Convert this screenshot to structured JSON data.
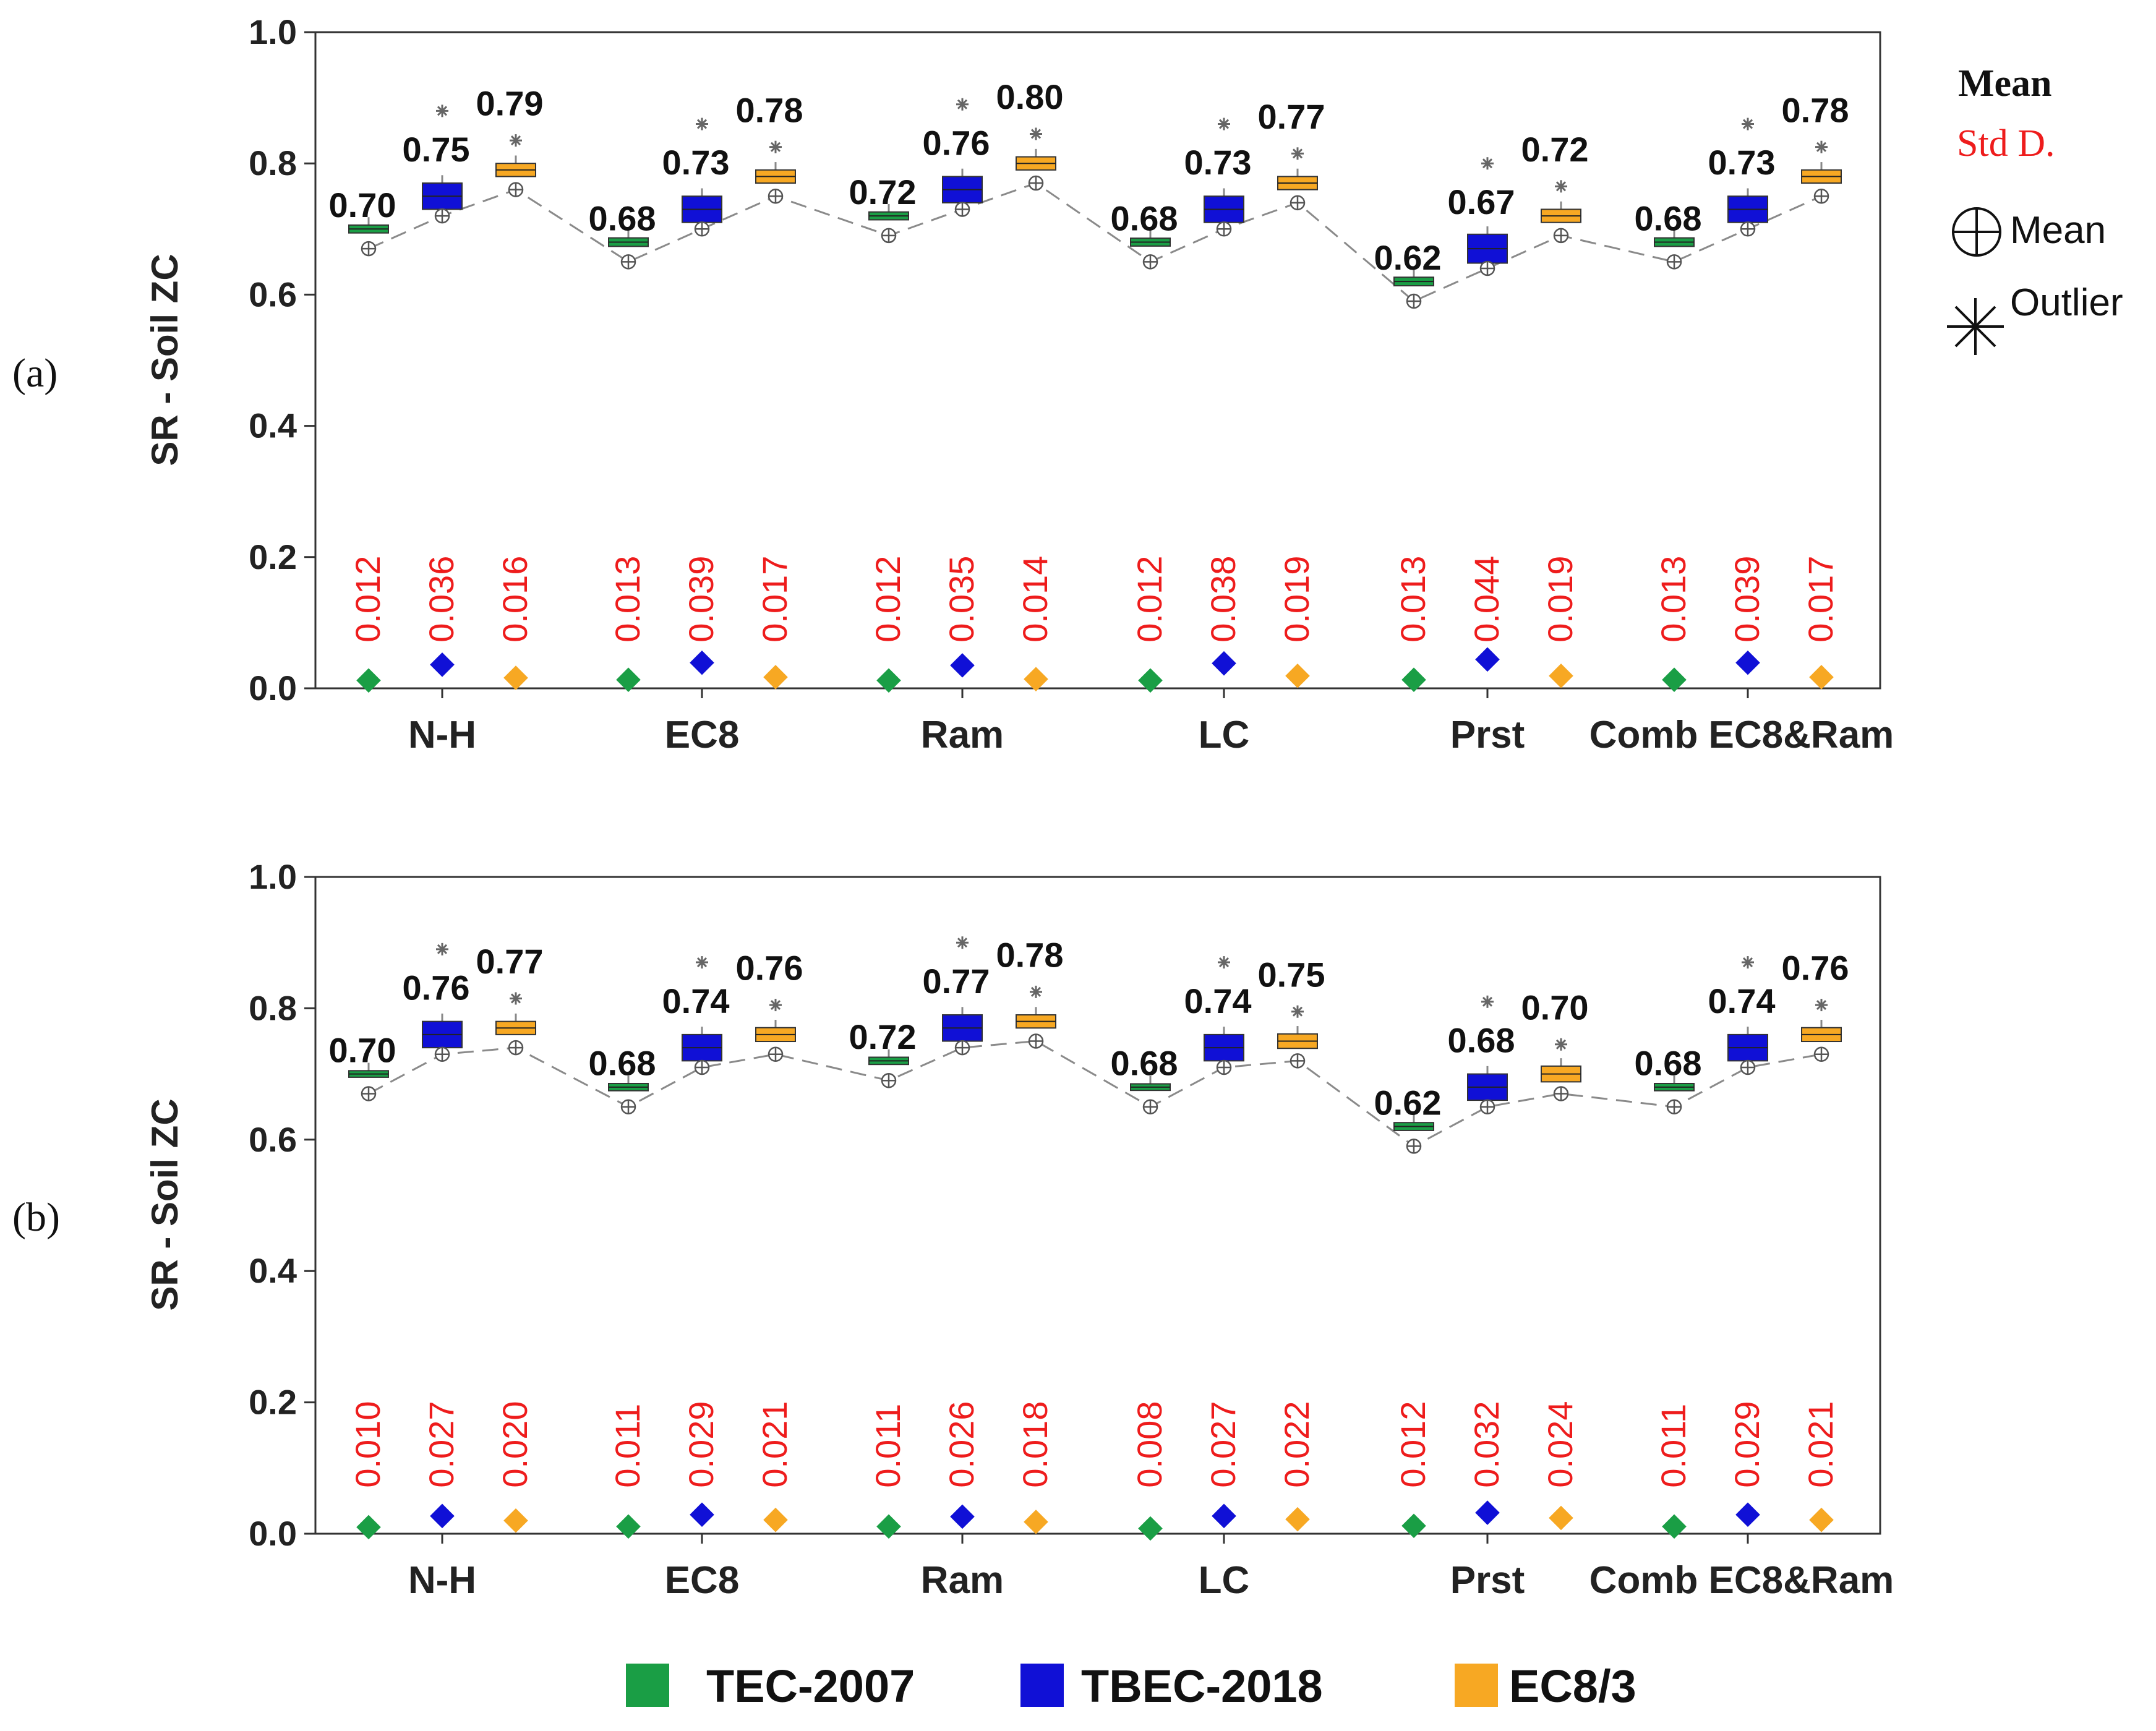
{
  "series_colors": {
    "TEC-2007": "#1a9e45",
    "TBEC-2018": "#1010d6",
    "EC8/3": "#f7a823"
  },
  "side_legend": {
    "mean_title": "Mean",
    "std_title": "Std D.",
    "mean_symbol": "Mean",
    "outlier_symbol": "Outlier"
  },
  "legend": [
    {
      "label": "TEC-2007",
      "color": "#1a9e45"
    },
    {
      "label": "TBEC-2018",
      "color": "#1010d6"
    },
    {
      "label": "EC8/3",
      "color": "#f7a823"
    }
  ],
  "chart_data": [
    {
      "type": "box",
      "panel": "(a)",
      "ylabel": "SR - Soil ZC",
      "ylim": [
        0.0,
        1.0
      ],
      "yticks": [
        "0.0",
        "0.2",
        "0.4",
        "0.6",
        "0.8",
        "1.0"
      ],
      "categories": [
        "N-H",
        "EC8",
        "Ram",
        "LC",
        "Prst",
        "Comb EC8&Ram"
      ],
      "series": [
        {
          "name": "TEC-2007",
          "mean": [
            0.7,
            0.68,
            0.72,
            0.68,
            0.62,
            0.68
          ],
          "mean_labels": [
            "0.70",
            "0.68",
            "0.72",
            "0.68",
            "0.62",
            "0.68"
          ],
          "std": [
            0.012,
            0.013,
            0.012,
            0.012,
            0.013,
            0.013
          ],
          "std_labels": [
            "0.012",
            "0.013",
            "0.012",
            "0.012",
            "0.013",
            "0.013"
          ]
        },
        {
          "name": "TBEC-2018",
          "mean": [
            0.75,
            0.73,
            0.76,
            0.73,
            0.67,
            0.73
          ],
          "mean_labels": [
            "0.75",
            "0.73",
            "0.76",
            "0.73",
            "0.67",
            "0.73"
          ],
          "std": [
            0.036,
            0.039,
            0.035,
            0.038,
            0.044,
            0.039
          ],
          "std_labels": [
            "0.036",
            "0.039",
            "0.035",
            "0.038",
            "0.044",
            "0.039"
          ]
        },
        {
          "name": "EC8/3",
          "mean": [
            0.79,
            0.78,
            0.8,
            0.77,
            0.72,
            0.78
          ],
          "mean_labels": [
            "0.79",
            "0.78",
            "0.80",
            "0.77",
            "0.72",
            "0.78"
          ],
          "std": [
            0.016,
            0.017,
            0.014,
            0.019,
            0.019,
            0.017
          ],
          "std_labels": [
            "0.016",
            "0.017",
            "0.014",
            "0.019",
            "0.019",
            "0.017"
          ]
        }
      ]
    },
    {
      "type": "box",
      "panel": "(b)",
      "ylabel": "SR - Soil ZC",
      "ylim": [
        0.0,
        1.0
      ],
      "yticks": [
        "0.0",
        "0.2",
        "0.4",
        "0.6",
        "0.8",
        "1.0"
      ],
      "categories": [
        "N-H",
        "EC8",
        "Ram",
        "LC",
        "Prst",
        "Comb EC8&Ram"
      ],
      "series": [
        {
          "name": "TEC-2007",
          "mean": [
            0.7,
            0.68,
            0.72,
            0.68,
            0.62,
            0.68
          ],
          "mean_labels": [
            "0.70",
            "0.68",
            "0.72",
            "0.68",
            "0.62",
            "0.68"
          ],
          "std": [
            0.01,
            0.011,
            0.011,
            0.008,
            0.012,
            0.011
          ],
          "std_labels": [
            "0.010",
            "0.011",
            "0.011",
            "0.008",
            "0.012",
            "0.011"
          ]
        },
        {
          "name": "TBEC-2018",
          "mean": [
            0.76,
            0.74,
            0.77,
            0.74,
            0.68,
            0.74
          ],
          "mean_labels": [
            "0.76",
            "0.74",
            "0.77",
            "0.74",
            "0.68",
            "0.74"
          ],
          "std": [
            0.027,
            0.029,
            0.026,
            0.027,
            0.032,
            0.029
          ],
          "std_labels": [
            "0.027",
            "0.029",
            "0.026",
            "0.027",
            "0.032",
            "0.029"
          ]
        },
        {
          "name": "EC8/3",
          "mean": [
            0.77,
            0.76,
            0.78,
            0.75,
            0.7,
            0.76
          ],
          "mean_labels": [
            "0.77",
            "0.76",
            "0.78",
            "0.75",
            "0.70",
            "0.76"
          ],
          "std": [
            0.02,
            0.021,
            0.018,
            0.022,
            0.024,
            0.021
          ],
          "std_labels": [
            "0.020",
            "0.021",
            "0.018",
            "0.022",
            "0.024",
            "0.021"
          ]
        }
      ]
    }
  ]
}
